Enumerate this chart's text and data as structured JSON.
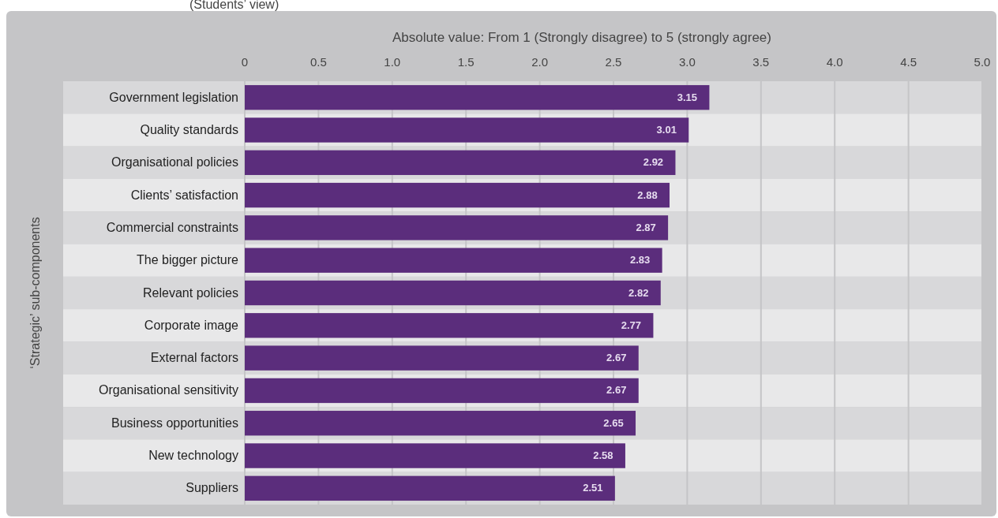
{
  "chart_data": {
    "type": "bar",
    "orientation": "horizontal",
    "subtitle": "(Students’ view)",
    "xlabel": "Absolute value: From 1 (Strongly disagree) to 5 (strongly agree)",
    "ylabel": "‘Strategic’ sub-components",
    "categories": [
      "Government legislation",
      "Quality standards",
      "Organisational policies",
      "Clients’ satisfaction",
      "Commercial constraints",
      "The bigger picture",
      "Relevant policies",
      "Corporate image",
      "External factors",
      "Organisational sensitivity",
      "Business opportunities",
      "New technology",
      "Suppliers"
    ],
    "values": [
      3.15,
      3.01,
      2.92,
      2.88,
      2.87,
      2.83,
      2.82,
      2.77,
      2.67,
      2.67,
      2.65,
      2.58,
      2.51
    ],
    "color": "#5b2d7c",
    "data_labels": true,
    "grid": "x",
    "xlim": [
      0,
      5
    ],
    "xticks": [
      0,
      0.5,
      {
        "value": 1,
        "label": "1.0"
      },
      1.5,
      {
        "value": 2,
        "label": "2.0"
      },
      2.5,
      {
        "value": 3,
        "label": "3.0"
      },
      3.5,
      {
        "value": 4,
        "label": "4.0"
      },
      4.5,
      {
        "value": 5,
        "label": "5.0"
      }
    ]
  }
}
